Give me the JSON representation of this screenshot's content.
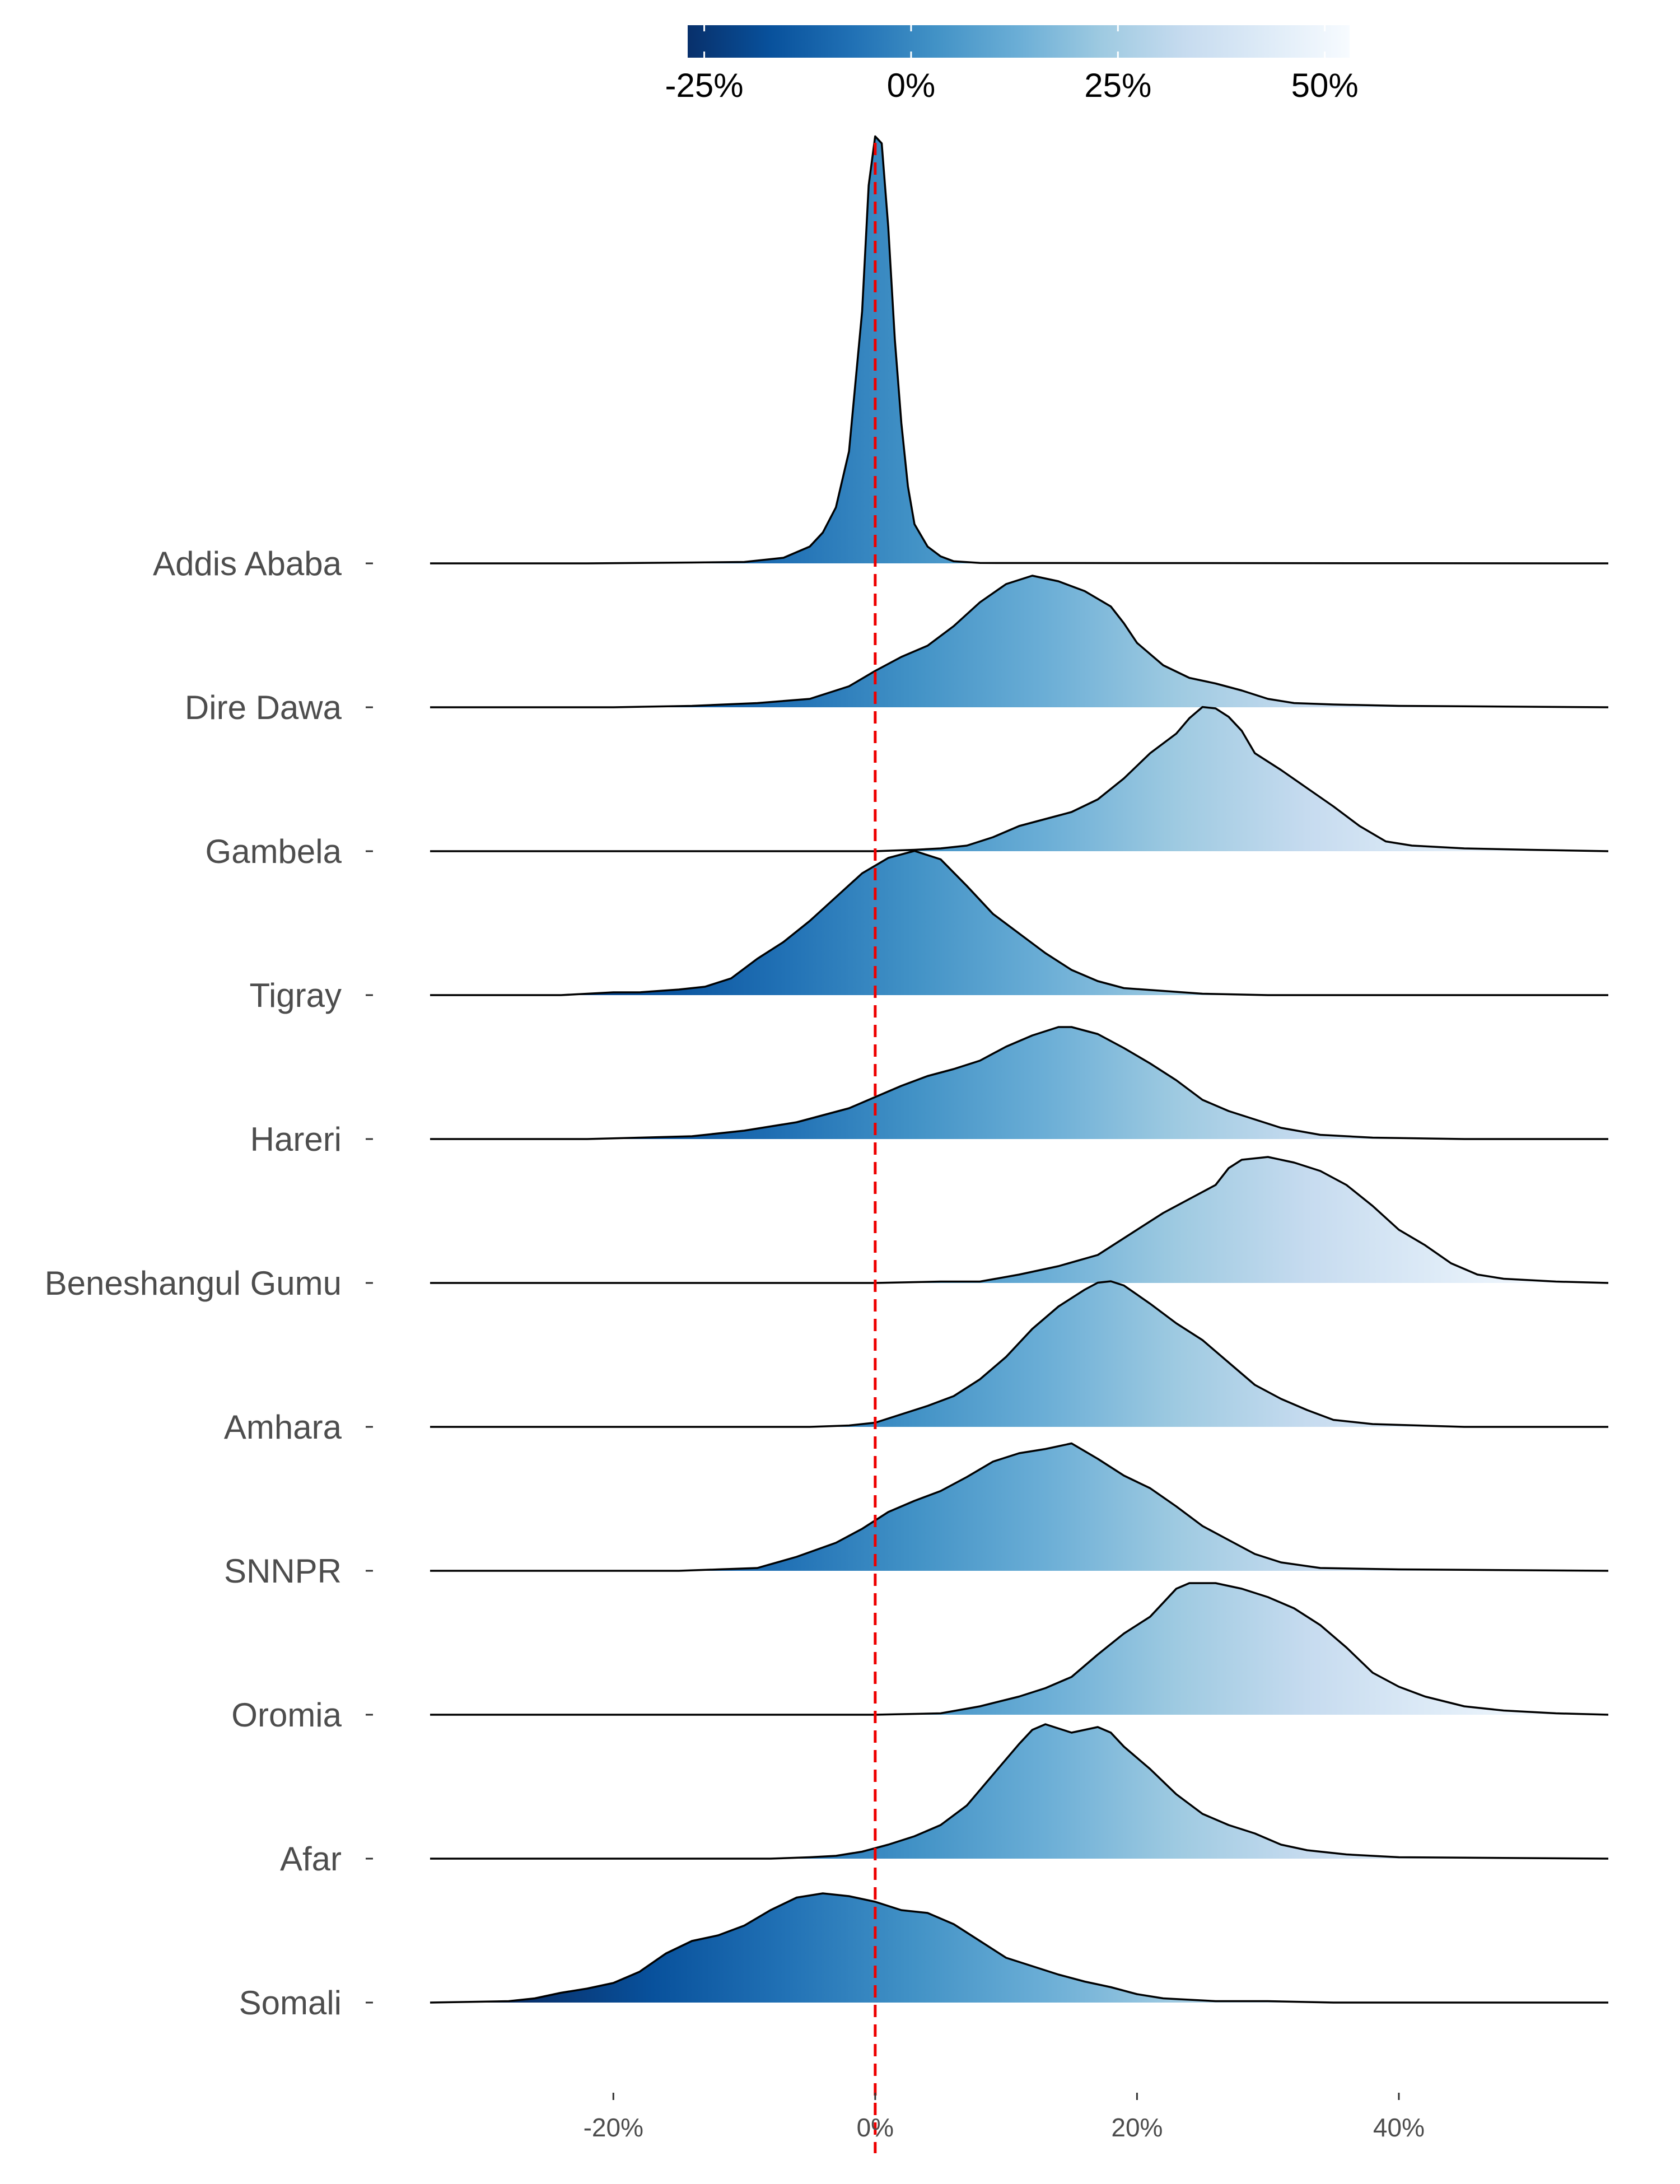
{
  "chart_data": {
    "type": "ridgeline",
    "title": "",
    "xlabel": "",
    "ylabel": "",
    "xlim": [
      -34,
      56
    ],
    "x_ticks": [
      {
        "value": -20,
        "label": "-20%"
      },
      {
        "value": 0,
        "label": "0%"
      },
      {
        "value": 20,
        "label": "20%"
      },
      {
        "value": 40,
        "label": "40%"
      }
    ],
    "reference_line": {
      "value": 0,
      "color": "#ee0000",
      "style": "dashed"
    },
    "colorbar": {
      "range": [
        -27,
        53
      ],
      "ticks": [
        {
          "value": -25,
          "label": "-25%"
        },
        {
          "value": 0,
          "label": "0%"
        },
        {
          "value": 25,
          "label": "25%"
        },
        {
          "value": 50,
          "label": "50%"
        }
      ],
      "colors": [
        "#08306b",
        "#08519c",
        "#2171b5",
        "#4292c6",
        "#6baed6",
        "#9ecae1",
        "#c6dbef",
        "#deebf7",
        "#f7fbff"
      ]
    },
    "series": [
      {
        "name": "Addis Ababa",
        "points": [
          [
            -34,
            0
          ],
          [
            -22,
            0
          ],
          [
            -14,
            0.6
          ],
          [
            -10,
            1
          ],
          [
            -7,
            4
          ],
          [
            -5,
            12
          ],
          [
            -4,
            22
          ],
          [
            -3,
            40
          ],
          [
            -2,
            80
          ],
          [
            -1,
            180
          ],
          [
            -0.5,
            270
          ],
          [
            0,
            305
          ],
          [
            0.5,
            300
          ],
          [
            1,
            240
          ],
          [
            1.5,
            160
          ],
          [
            2,
            100
          ],
          [
            2.5,
            55
          ],
          [
            3,
            28
          ],
          [
            4,
            12
          ],
          [
            5,
            5
          ],
          [
            6,
            1.5
          ],
          [
            8,
            0.3
          ],
          [
            56,
            0
          ]
        ]
      },
      {
        "name": "Dire Dawa",
        "points": [
          [
            -34,
            0
          ],
          [
            -20,
            0
          ],
          [
            -14,
            1
          ],
          [
            -9,
            3
          ],
          [
            -5,
            6
          ],
          [
            -2,
            15
          ],
          [
            0,
            26
          ],
          [
            2,
            36
          ],
          [
            4,
            44
          ],
          [
            6,
            58
          ],
          [
            8,
            75
          ],
          [
            10,
            88
          ],
          [
            12,
            94
          ],
          [
            14,
            90
          ],
          [
            16,
            83
          ],
          [
            18,
            72
          ],
          [
            19,
            60
          ],
          [
            20,
            46
          ],
          [
            22,
            30
          ],
          [
            24,
            21
          ],
          [
            26,
            17
          ],
          [
            28,
            12
          ],
          [
            30,
            6
          ],
          [
            32,
            3
          ],
          [
            35,
            2
          ],
          [
            40,
            1
          ],
          [
            56,
            0
          ]
        ]
      },
      {
        "name": "Gambela",
        "points": [
          [
            -34,
            0
          ],
          [
            0,
            0
          ],
          [
            3,
            1
          ],
          [
            5,
            2
          ],
          [
            7,
            4
          ],
          [
            9,
            10
          ],
          [
            11,
            18
          ],
          [
            13,
            23
          ],
          [
            15,
            28
          ],
          [
            17,
            37
          ],
          [
            19,
            52
          ],
          [
            21,
            70
          ],
          [
            23,
            84
          ],
          [
            24,
            95
          ],
          [
            25,
            103
          ],
          [
            26,
            102
          ],
          [
            27,
            96
          ],
          [
            28,
            86
          ],
          [
            29,
            70
          ],
          [
            31,
            58
          ],
          [
            33,
            45
          ],
          [
            35,
            32
          ],
          [
            37,
            18
          ],
          [
            39,
            7
          ],
          [
            41,
            4
          ],
          [
            45,
            2
          ],
          [
            50,
            1
          ],
          [
            56,
            0
          ]
        ]
      },
      {
        "name": "Tigray",
        "points": [
          [
            -34,
            0
          ],
          [
            -24,
            0
          ],
          [
            -22,
            1
          ],
          [
            -20,
            2
          ],
          [
            -18,
            2
          ],
          [
            -15,
            4
          ],
          [
            -13,
            6
          ],
          [
            -11,
            12
          ],
          [
            -9,
            26
          ],
          [
            -7,
            38
          ],
          [
            -5,
            53
          ],
          [
            -3,
            70
          ],
          [
            -1,
            87
          ],
          [
            1,
            98
          ],
          [
            3,
            103
          ],
          [
            5,
            97
          ],
          [
            7,
            78
          ],
          [
            9,
            58
          ],
          [
            11,
            44
          ],
          [
            13,
            30
          ],
          [
            15,
            18
          ],
          [
            17,
            10
          ],
          [
            19,
            5
          ],
          [
            22,
            3
          ],
          [
            25,
            1
          ],
          [
            30,
            0
          ],
          [
            56,
            0
          ]
        ]
      },
      {
        "name": "Hareri",
        "points": [
          [
            -34,
            0
          ],
          [
            -22,
            0
          ],
          [
            -18,
            1
          ],
          [
            -14,
            2
          ],
          [
            -10,
            6
          ],
          [
            -6,
            12
          ],
          [
            -4,
            17
          ],
          [
            -2,
            22
          ],
          [
            0,
            30
          ],
          [
            2,
            38
          ],
          [
            4,
            45
          ],
          [
            6,
            50
          ],
          [
            8,
            56
          ],
          [
            10,
            66
          ],
          [
            12,
            74
          ],
          [
            14,
            80
          ],
          [
            15,
            80
          ],
          [
            17,
            75
          ],
          [
            19,
            65
          ],
          [
            21,
            54
          ],
          [
            23,
            42
          ],
          [
            25,
            28
          ],
          [
            27,
            20
          ],
          [
            29,
            14
          ],
          [
            31,
            8
          ],
          [
            34,
            3
          ],
          [
            38,
            1
          ],
          [
            45,
            0
          ],
          [
            56,
            0
          ]
        ]
      },
      {
        "name": "Beneshangul Gumu",
        "points": [
          [
            -34,
            0
          ],
          [
            0,
            0
          ],
          [
            5,
            1
          ],
          [
            8,
            1
          ],
          [
            11,
            6
          ],
          [
            14,
            12
          ],
          [
            17,
            20
          ],
          [
            20,
            38
          ],
          [
            22,
            50
          ],
          [
            24,
            60
          ],
          [
            26,
            70
          ],
          [
            27,
            82
          ],
          [
            28,
            88
          ],
          [
            30,
            90
          ],
          [
            32,
            86
          ],
          [
            34,
            80
          ],
          [
            36,
            70
          ],
          [
            38,
            55
          ],
          [
            40,
            38
          ],
          [
            42,
            27
          ],
          [
            44,
            14
          ],
          [
            46,
            6
          ],
          [
            48,
            3
          ],
          [
            52,
            1
          ],
          [
            56,
            0
          ]
        ]
      },
      {
        "name": "Amhara",
        "points": [
          [
            -34,
            0
          ],
          [
            -5,
            0
          ],
          [
            -2,
            1
          ],
          [
            0,
            3
          ],
          [
            2,
            9
          ],
          [
            4,
            15
          ],
          [
            6,
            22
          ],
          [
            8,
            34
          ],
          [
            10,
            50
          ],
          [
            12,
            70
          ],
          [
            14,
            86
          ],
          [
            16,
            98
          ],
          [
            17,
            103
          ],
          [
            18,
            104
          ],
          [
            19,
            101
          ],
          [
            21,
            88
          ],
          [
            23,
            74
          ],
          [
            25,
            62
          ],
          [
            27,
            46
          ],
          [
            29,
            30
          ],
          [
            31,
            20
          ],
          [
            33,
            12
          ],
          [
            35,
            5
          ],
          [
            38,
            2
          ],
          [
            45,
            0
          ],
          [
            56,
            0
          ]
        ]
      },
      {
        "name": "SNNPR",
        "points": [
          [
            -34,
            0
          ],
          [
            -15,
            0
          ],
          [
            -12,
            1
          ],
          [
            -9,
            2
          ],
          [
            -6,
            10
          ],
          [
            -3,
            20
          ],
          [
            -1,
            30
          ],
          [
            1,
            42
          ],
          [
            3,
            50
          ],
          [
            5,
            57
          ],
          [
            7,
            67
          ],
          [
            9,
            78
          ],
          [
            11,
            84
          ],
          [
            13,
            87
          ],
          [
            15,
            91
          ],
          [
            17,
            80
          ],
          [
            19,
            68
          ],
          [
            21,
            59
          ],
          [
            23,
            46
          ],
          [
            25,
            32
          ],
          [
            27,
            22
          ],
          [
            29,
            12
          ],
          [
            31,
            6
          ],
          [
            34,
            2
          ],
          [
            40,
            1
          ],
          [
            56,
            0
          ]
        ]
      },
      {
        "name": "Oromia",
        "points": [
          [
            -34,
            0
          ],
          [
            0,
            0
          ],
          [
            5,
            1
          ],
          [
            8,
            6
          ],
          [
            11,
            13
          ],
          [
            13,
            19
          ],
          [
            15,
            27
          ],
          [
            17,
            43
          ],
          [
            19,
            58
          ],
          [
            21,
            70
          ],
          [
            22,
            80
          ],
          [
            23,
            90
          ],
          [
            24,
            94
          ],
          [
            26,
            94
          ],
          [
            28,
            90
          ],
          [
            30,
            84
          ],
          [
            32,
            76
          ],
          [
            34,
            64
          ],
          [
            36,
            48
          ],
          [
            38,
            30
          ],
          [
            40,
            20
          ],
          [
            42,
            13
          ],
          [
            45,
            6
          ],
          [
            48,
            3
          ],
          [
            52,
            1
          ],
          [
            56,
            0
          ]
        ]
      },
      {
        "name": "Afar",
        "points": [
          [
            -34,
            0
          ],
          [
            -8,
            0
          ],
          [
            -5,
            1
          ],
          [
            -3,
            2
          ],
          [
            -1,
            5
          ],
          [
            1,
            10
          ],
          [
            3,
            16
          ],
          [
            5,
            24
          ],
          [
            7,
            38
          ],
          [
            9,
            60
          ],
          [
            11,
            82
          ],
          [
            12,
            92
          ],
          [
            13,
            96
          ],
          [
            14,
            93
          ],
          [
            15,
            90
          ],
          [
            16,
            92
          ],
          [
            17,
            94
          ],
          [
            18,
            90
          ],
          [
            19,
            80
          ],
          [
            21,
            64
          ],
          [
            23,
            46
          ],
          [
            25,
            32
          ],
          [
            27,
            24
          ],
          [
            29,
            18
          ],
          [
            31,
            10
          ],
          [
            33,
            6
          ],
          [
            36,
            3
          ],
          [
            40,
            1
          ],
          [
            56,
            0
          ]
        ]
      },
      {
        "name": "Somali",
        "points": [
          [
            -34,
            0
          ],
          [
            -28,
            1
          ],
          [
            -26,
            3
          ],
          [
            -24,
            7
          ],
          [
            -22,
            10
          ],
          [
            -20,
            14
          ],
          [
            -18,
            22
          ],
          [
            -16,
            35
          ],
          [
            -14,
            44
          ],
          [
            -12,
            48
          ],
          [
            -10,
            55
          ],
          [
            -8,
            66
          ],
          [
            -6,
            75
          ],
          [
            -4,
            78
          ],
          [
            -2,
            76
          ],
          [
            0,
            72
          ],
          [
            2,
            66
          ],
          [
            4,
            64
          ],
          [
            6,
            56
          ],
          [
            8,
            44
          ],
          [
            10,
            32
          ],
          [
            12,
            26
          ],
          [
            14,
            20
          ],
          [
            16,
            15
          ],
          [
            18,
            11
          ],
          [
            20,
            6
          ],
          [
            22,
            3
          ],
          [
            26,
            1
          ],
          [
            30,
            1
          ],
          [
            35,
            0
          ],
          [
            56,
            0
          ]
        ]
      }
    ]
  }
}
